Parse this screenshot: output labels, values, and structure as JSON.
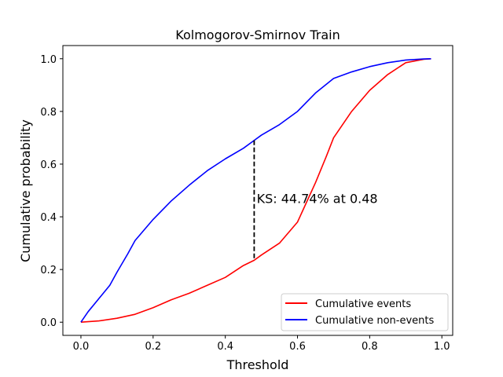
{
  "chart_data": {
    "type": "line",
    "title": "Kolmogorov-Smirnov Train",
    "xlabel": "Threshold",
    "ylabel": "Cumulative probability",
    "xlim": [
      -0.05,
      1.03
    ],
    "ylim": [
      -0.05,
      1.05
    ],
    "xticks": [
      0.0,
      0.2,
      0.4,
      0.6,
      0.8,
      1.0
    ],
    "xtick_labels": [
      "0.0",
      "0.2",
      "0.4",
      "0.6",
      "0.8",
      "1.0"
    ],
    "yticks": [
      0.0,
      0.2,
      0.4,
      0.6,
      0.8,
      1.0
    ],
    "ytick_labels": [
      "0.0",
      "0.2",
      "0.4",
      "0.6",
      "0.8",
      "1.0"
    ],
    "grid": false,
    "legend_position": "bottom-right",
    "series": [
      {
        "name": "Cumulative events",
        "color": "#ff0000",
        "x": [
          0.0,
          0.05,
          0.1,
          0.15,
          0.2,
          0.25,
          0.3,
          0.35,
          0.4,
          0.45,
          0.48,
          0.5,
          0.55,
          0.6,
          0.62,
          0.65,
          0.68,
          0.7,
          0.75,
          0.8,
          0.85,
          0.9,
          0.95,
          0.97
        ],
        "y": [
          0.0,
          0.005,
          0.015,
          0.03,
          0.055,
          0.085,
          0.11,
          0.14,
          0.17,
          0.215,
          0.235,
          0.255,
          0.3,
          0.38,
          0.44,
          0.53,
          0.63,
          0.7,
          0.8,
          0.88,
          0.94,
          0.985,
          0.998,
          1.0
        ]
      },
      {
        "name": "Cumulative non-events",
        "color": "#0000ff",
        "x": [
          0.0,
          0.02,
          0.05,
          0.08,
          0.1,
          0.13,
          0.15,
          0.2,
          0.25,
          0.3,
          0.35,
          0.4,
          0.45,
          0.48,
          0.5,
          0.55,
          0.6,
          0.65,
          0.7,
          0.75,
          0.8,
          0.85,
          0.9,
          0.95,
          0.97
        ],
        "y": [
          0.0,
          0.04,
          0.09,
          0.14,
          0.19,
          0.26,
          0.31,
          0.39,
          0.46,
          0.52,
          0.575,
          0.62,
          0.66,
          0.69,
          0.71,
          0.75,
          0.8,
          0.87,
          0.925,
          0.95,
          0.97,
          0.985,
          0.995,
          0.999,
          1.0
        ]
      }
    ],
    "ks_line": {
      "x": 0.48,
      "y_from": 0.235,
      "y_to": 0.69,
      "style": "dashed",
      "color": "#000000"
    },
    "annotation": {
      "text": "KS: 44.74% at 0.48",
      "x": 0.5,
      "y": 0.47
    }
  }
}
